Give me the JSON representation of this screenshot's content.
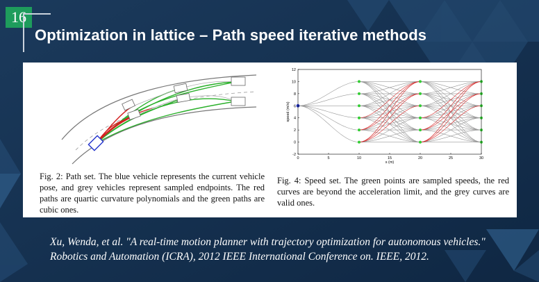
{
  "slide": {
    "number": "16",
    "title": "Optimization in lattice – Path speed iterative methods"
  },
  "figures": {
    "left_caption": "Fig. 2: Path set. The blue vehicle represents the current vehicle pose, and grey vehicles represent sampled endpoints. The red paths are quartic curvature polynomials and the green paths are cubic ones.",
    "right_caption": "Fig. 4: Speed set. The green points are sampled speeds, the red curves are beyond the acceleration limit, and the grey curves are valid ones."
  },
  "citation": {
    "line1": "Xu, Wenda, et al. \"A real-time motion planner with trajectory optimization for autonomous vehicles.\"",
    "line2": "Robotics and Automation (ICRA), 2012 IEEE International Conference on. IEEE, 2012."
  },
  "chart_data": {
    "type": "line",
    "xlabel": "s (m)",
    "ylabel": "speed (m/s)",
    "xlim": [
      0,
      30
    ],
    "ylim": [
      -2,
      12
    ],
    "xticks": [
      0,
      5,
      10,
      15,
      20,
      25,
      30
    ],
    "yticks": [
      -2,
      0,
      2,
      4,
      6,
      8,
      10,
      12
    ],
    "start_point": {
      "x": 0,
      "y": 6
    },
    "sample_stations": [
      10,
      20,
      30
    ],
    "sampled_speeds": [
      0,
      2,
      4,
      6,
      8,
      10
    ],
    "colors": {
      "valid": "#999999",
      "over_limit": "#d42020",
      "samples": "#33cc33",
      "start": "#2233cc"
    }
  },
  "colors": {
    "background": "#15304f",
    "accent_triangles": "#2c5a86",
    "green_path": "#2bb02b",
    "red_path": "#d42020",
    "blue_vehicle": "#2233cc"
  }
}
